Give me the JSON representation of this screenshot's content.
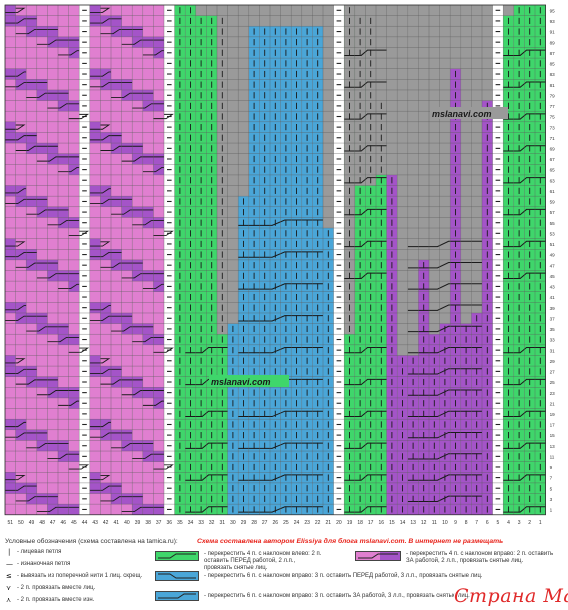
{
  "columns": [
    51,
    50,
    49,
    48,
    47,
    46,
    45,
    44,
    43,
    42,
    41,
    40,
    39,
    38,
    37,
    36,
    35,
    34,
    33,
    32,
    31,
    30,
    29,
    28,
    27,
    26,
    25,
    24,
    23,
    22,
    21,
    20,
    19,
    18,
    17,
    16,
    15,
    14,
    13,
    12,
    11,
    10,
    9,
    8,
    7,
    6,
    5,
    4,
    3,
    2,
    1
  ],
  "rows": [
    95,
    93,
    91,
    89,
    87,
    85,
    83,
    81,
    79,
    77,
    75,
    73,
    71,
    69,
    67,
    65,
    63,
    61,
    59,
    57,
    55,
    53,
    51,
    49,
    47,
    45,
    43,
    41,
    39,
    37,
    35,
    33,
    31,
    29,
    27,
    25,
    23,
    21,
    19,
    17,
    15,
    13,
    11,
    9,
    7,
    5,
    3,
    1
  ],
  "colors": {
    "pink": "#e07fd0",
    "purple": "#a454c8",
    "purple_dark": "#8a3fb3",
    "green": "#3fd66b",
    "blue": "#4aa6d8",
    "gray": "#9a9a9a",
    "white": "#ffffff"
  },
  "watermark_top": "mslanavi.com",
  "watermark_mid": "mslanavi.com",
  "legend": {
    "title": "Условные обозначения (схема составлена на tamica.ru):",
    "credit_pre": "Схема составлена автором ",
    "credit_author": "Elissiya",
    "credit_mid": " для блога ",
    "credit_blog": "mslanavi.com.",
    "credit_post": " В интернет не размещать",
    "items_left": [
      {
        "icon": "knit-stitch-icon",
        "symbol": "|",
        "text": "- лицевая петля"
      },
      {
        "icon": "purl-stitch-icon",
        "symbol": "—",
        "text": "- изнаночная петля"
      },
      {
        "icon": "lift-strand-icon",
        "symbol": "≤",
        "text": "- вывязать из поперечной нити 1 лиц. скрещ."
      },
      {
        "icon": "k2tog-icon",
        "symbol": "⋎",
        "text": "- 2 п. провязать вместе лиц."
      },
      {
        "icon": "p2tog-icon",
        "symbol": "⋏",
        "text": "- 2 п. провязать вместе изн."
      }
    ],
    "items_middle": [
      {
        "text": "- перекрестить 4 п. с наклоном влево: 2 п. оставить ПЕРЕД работой, 2 л.п., провязать снятые лиц."
      },
      {
        "text": "- перекрестить 6 п. с наклоном вправо: 3 п. оставить ПЕРЕД работой, 3 л.п., провязать снятые лиц."
      },
      {
        "text": "- перекрестить 6 п. с наклоном вправо: 3 п. оставить ЗА работой, 3 л.п., провязать снятые лиц."
      }
    ],
    "items_right": [
      {
        "text": "- перекрестить 4 п. с наклоном вправо: 2 п. оставить ЗА работой, 2 л.п., провязать снятые лиц."
      }
    ]
  },
  "logo_text": "Страна Мам"
}
